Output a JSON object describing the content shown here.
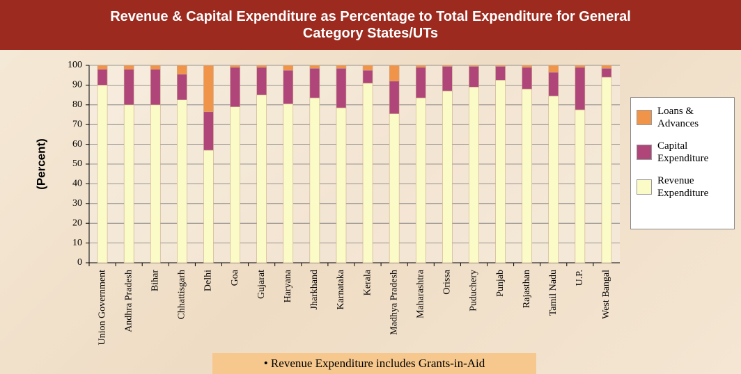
{
  "chart_data": {
    "type": "stacked-bar",
    "title": "Revenue & Capital Expenditure as Percentage to Total Expenditure for General Category States/UTs",
    "y_label": "(Percent)",
    "note": "• Revenue Expenditure includes Grants-in-Aid",
    "categories": [
      "Union Government",
      "Andhra Pradesh",
      "Bihar",
      "Chhattisgarh",
      "Delhi",
      "Goa",
      "Gujarat",
      "Haryana",
      "Jharkhand",
      "Karnataka",
      "Kerala",
      "Madhya Pradesh",
      "Maharashtra",
      "Orissa",
      "Puduchery",
      "Punjab",
      "Rajasthan",
      "Tamil Nadu",
      "U.P.",
      "West Bangal"
    ],
    "series": [
      {
        "name": "Revenue Expenditure",
        "color": "#fbfbc8",
        "values": [
          90,
          80,
          80,
          82.5,
          57,
          79,
          85,
          80.5,
          83.5,
          78.5,
          91,
          75.5,
          83.5,
          87,
          89,
          92.5,
          88,
          84.5,
          77.5,
          94
        ]
      },
      {
        "name": "Capital Expenditure",
        "color": "#b0457a",
        "values": [
          8,
          18,
          18,
          13,
          19.5,
          20,
          14,
          17,
          15,
          20,
          6.5,
          16.5,
          15.5,
          12.5,
          10.5,
          7,
          11,
          12,
          21.5,
          4.5
        ]
      },
      {
        "name": "Loans & Advances",
        "color": "#f0944a",
        "values": [
          2,
          2,
          2,
          4.5,
          23.5,
          1,
          1,
          2.5,
          1.5,
          1.5,
          2.5,
          8,
          1,
          0.5,
          0.5,
          0.5,
          1,
          3.5,
          1,
          1.5
        ]
      }
    ],
    "ylim": [
      0,
      100
    ],
    "yticks": [
      0,
      10,
      20,
      30,
      40,
      50,
      60,
      70,
      80,
      90,
      100
    ],
    "grid": true
  }
}
